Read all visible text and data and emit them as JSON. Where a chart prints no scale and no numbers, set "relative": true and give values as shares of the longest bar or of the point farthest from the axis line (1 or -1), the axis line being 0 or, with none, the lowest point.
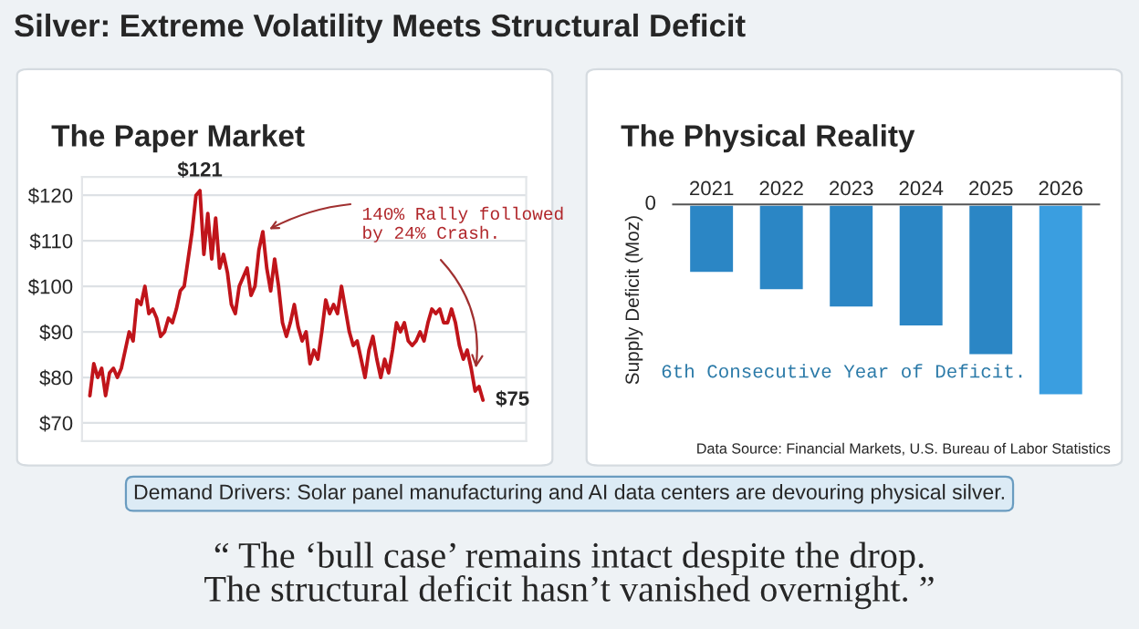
{
  "chart_data": [
    {
      "type": "other",
      "title": "Silver: Extreme Volatility Meets Structural Deficit"
    },
    {
      "type": "line",
      "title": "The Paper Market",
      "categories": [
        null,
        null,
        null,
        null,
        null,
        null,
        null,
        null,
        null,
        null,
        null,
        null,
        null,
        null,
        null,
        null,
        null,
        null,
        null,
        null,
        null,
        null,
        null,
        null,
        null,
        null,
        null,
        null,
        null,
        null,
        null,
        null,
        null,
        null,
        null,
        null,
        null,
        null,
        null,
        null,
        null,
        null,
        null,
        null,
        null,
        null,
        null,
        null,
        null,
        null,
        null,
        null,
        null,
        null,
        null,
        null,
        null,
        null,
        null,
        null,
        null,
        null,
        null,
        null,
        null,
        null,
        null,
        null,
        null,
        null,
        null,
        null,
        null,
        null,
        null,
        null,
        null,
        null,
        null,
        null,
        null,
        null,
        null,
        null,
        null,
        null,
        null,
        null,
        null,
        null,
        null,
        null,
        null,
        null,
        null,
        null,
        null,
        null,
        null,
        null,
        null
      ],
      "series": [
        {
          "color": "#c0141a",
          "values": [
            76,
            83,
            80,
            82,
            76,
            81,
            82,
            80,
            82,
            86,
            90,
            88,
            97,
            96,
            100,
            94,
            95,
            93,
            89,
            90,
            93,
            92,
            95,
            99,
            100,
            106,
            112,
            120,
            121,
            107,
            116,
            106,
            115,
            104,
            107,
            103,
            96,
            94,
            100,
            102,
            104,
            98,
            100,
            108,
            112,
            104,
            99,
            106,
            100,
            92,
            89,
            92,
            96,
            91,
            88,
            90,
            83,
            86,
            84,
            90,
            97,
            94,
            96,
            94,
            100,
            95,
            90,
            87,
            88,
            84,
            80,
            86,
            89,
            84,
            80,
            84,
            81,
            86,
            92,
            90,
            92,
            88,
            87,
            88,
            90,
            88,
            92,
            95,
            94,
            95,
            92,
            92,
            95,
            92,
            87,
            84,
            86,
            82,
            77,
            78,
            75
          ],
          "value_labels": [
            null,
            null,
            null,
            null,
            null,
            null,
            null,
            null,
            null,
            null,
            null,
            null,
            null,
            null,
            null,
            null,
            null,
            null,
            null,
            null,
            null,
            null,
            null,
            null,
            null,
            null,
            null,
            null,
            "$121",
            null,
            null,
            null,
            null,
            null,
            null,
            null,
            null,
            null,
            null,
            null,
            null,
            null,
            null,
            null,
            null,
            null,
            null,
            null,
            null,
            null,
            null,
            null,
            null,
            null,
            null,
            null,
            null,
            null,
            null,
            null,
            null,
            null,
            null,
            null,
            null,
            null,
            null,
            null,
            null,
            null,
            null,
            null,
            null,
            null,
            null,
            null,
            null,
            null,
            null,
            null,
            null,
            null,
            null,
            null,
            null,
            null,
            null,
            null,
            null,
            null,
            null,
            null,
            null,
            null,
            null,
            null,
            null,
            null,
            null,
            null,
            "$75"
          ]
        }
      ],
      "ylim": [
        66,
        124
      ],
      "yticks": [
        {
          "value": 70,
          "label": "$70"
        },
        {
          "value": 80,
          "label": "$80"
        },
        {
          "value": 90,
          "label": "$90"
        },
        {
          "value": 100,
          "label": "$100"
        },
        {
          "value": 110,
          "label": "$110"
        },
        {
          "value": 120,
          "label": "$120"
        }
      ],
      "tick_labels": "y",
      "grid": "y",
      "marker": "none",
      "line_style": "solid",
      "annotations": [
        "140% Rally followed\nby 24% Crash."
      ]
    },
    {
      "type": "bar",
      "title": "The Physical Reality",
      "categories": [
        "2021",
        "2022",
        "2023",
        "2024",
        "2025",
        "2026"
      ],
      "values": [
        -0.36,
        -0.45,
        -0.54,
        -0.64,
        -0.79,
        -1
      ],
      "colors": [
        "#2b86c5",
        "#2b86c5",
        "#2b86c5",
        "#2b86c5",
        "#2b86c5",
        "#3a9ee0"
      ],
      "relative": true,
      "ylabel": "Supply Deficit (Moz)",
      "tick_labels": "x",
      "annotations": [
        "0",
        "6th Consecutive Year of Deficit.",
        "Data Source: Financial Markets, U.S. Bureau of Labor Statistics"
      ]
    },
    {
      "type": "other",
      "annotations": [
        "Demand Drivers: Solar panel manufacturing and AI data centers are devouring physical silver.",
        "“ The ‘bull case’ remains intact despite the drop.\nThe structural deficit hasn’t vanished overnight. ”"
      ]
    }
  ]
}
